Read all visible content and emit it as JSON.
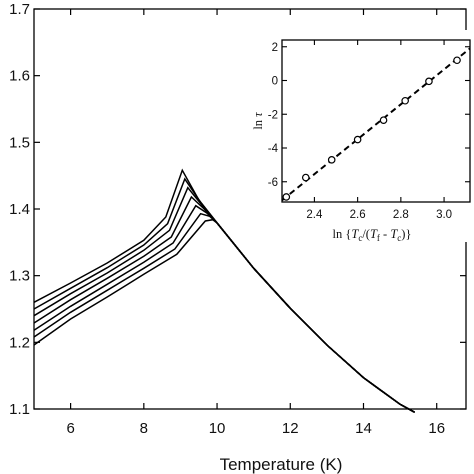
{
  "chart_data": [
    {
      "type": "line",
      "title": "",
      "xlabel": "Temperature (K)",
      "ylabel": "",
      "xlim": [
        5,
        16.8
      ],
      "ylim": [
        1.1,
        1.7
      ],
      "xticks": [
        6,
        8,
        10,
        12,
        14,
        16
      ],
      "yticks": [
        1.1,
        1.2,
        1.3,
        1.4,
        1.5,
        1.6,
        1.7
      ],
      "grid": false,
      "series": [
        {
          "x": [
            5.0,
            6.0,
            7.0,
            8.0,
            8.6,
            9.05,
            9.5,
            10.0,
            11.0,
            12.0,
            13.0,
            14.0,
            15.0,
            15.4
          ],
          "y": [
            1.26,
            1.289,
            1.319,
            1.353,
            1.388,
            1.458,
            1.414,
            1.379,
            1.311,
            1.251,
            1.196,
            1.147,
            1.107,
            1.095
          ]
        },
        {
          "x": [
            5.0,
            6.0,
            7.0,
            8.0,
            8.65,
            9.12,
            9.55,
            10.0,
            11.0,
            12.0,
            13.0,
            14.0,
            15.0,
            15.4
          ],
          "y": [
            1.25,
            1.281,
            1.312,
            1.346,
            1.378,
            1.445,
            1.41,
            1.379,
            1.311,
            1.251,
            1.196,
            1.147,
            1.107,
            1.095
          ]
        },
        {
          "x": [
            5.0,
            6.0,
            7.0,
            8.0,
            8.7,
            9.2,
            9.6,
            10.0,
            11.0,
            12.0,
            13.0,
            14.0,
            15.0,
            15.4
          ],
          "y": [
            1.24,
            1.273,
            1.304,
            1.338,
            1.368,
            1.432,
            1.405,
            1.379,
            1.311,
            1.251,
            1.196,
            1.147,
            1.107,
            1.095
          ]
        },
        {
          "x": [
            5.0,
            6.0,
            7.0,
            8.0,
            8.75,
            9.3,
            9.65,
            10.0,
            11.0,
            12.0,
            13.0,
            14.0,
            15.0,
            15.4
          ],
          "y": [
            1.229,
            1.264,
            1.296,
            1.329,
            1.358,
            1.418,
            1.4,
            1.379,
            1.311,
            1.251,
            1.196,
            1.147,
            1.107,
            1.095
          ]
        },
        {
          "x": [
            5.0,
            6.0,
            7.0,
            8.0,
            8.8,
            9.42,
            9.72,
            10.0,
            11.0,
            12.0,
            13.0,
            14.0,
            15.0,
            15.4
          ],
          "y": [
            1.218,
            1.254,
            1.287,
            1.32,
            1.349,
            1.405,
            1.394,
            1.379,
            1.311,
            1.251,
            1.196,
            1.147,
            1.107,
            1.095
          ]
        },
        {
          "x": [
            5.0,
            6.0,
            7.0,
            8.0,
            8.85,
            9.55,
            9.8,
            10.0,
            11.0,
            12.0,
            13.0,
            14.0,
            15.0,
            15.4
          ],
          "y": [
            1.208,
            1.245,
            1.278,
            1.311,
            1.34,
            1.393,
            1.389,
            1.379,
            1.311,
            1.251,
            1.196,
            1.147,
            1.107,
            1.095
          ]
        },
        {
          "x": [
            5.0,
            6.0,
            7.0,
            8.0,
            8.9,
            9.68,
            9.88,
            10.0,
            11.0,
            12.0,
            13.0,
            14.0,
            15.0,
            15.4
          ],
          "y": [
            1.196,
            1.235,
            1.268,
            1.302,
            1.332,
            1.382,
            1.384,
            1.379,
            1.311,
            1.251,
            1.196,
            1.147,
            1.107,
            1.095
          ]
        }
      ]
    },
    {
      "type": "scatter",
      "title": "",
      "xlabel_parts": [
        "ln {",
        "T",
        "c",
        "/(",
        "T",
        "f",
        " - ",
        "T",
        "c",
        ")}"
      ],
      "ylabel_parts": [
        "ln ",
        "τ"
      ],
      "xlim": [
        2.25,
        3.12
      ],
      "ylim": [
        -7.2,
        2.4
      ],
      "xticks": [
        2.4,
        2.6,
        2.8,
        3.0
      ],
      "xtick_labels": [
        "2.4",
        "2.6",
        "2.8",
        "3.0"
      ],
      "yticks": [
        2,
        0,
        -2,
        -4,
        -6
      ],
      "ytick_labels": [
        "2",
        "0",
        "-2",
        "-4",
        "-6"
      ],
      "grid": false,
      "points": {
        "x": [
          2.27,
          2.36,
          2.48,
          2.6,
          2.72,
          2.82,
          2.93,
          3.06
        ],
        "y": [
          -6.9,
          -5.75,
          -4.7,
          -3.5,
          -2.35,
          -1.2,
          -0.05,
          1.2
        ]
      },
      "fit": {
        "style": "dashed",
        "x": [
          2.25,
          3.12
        ],
        "y": [
          -7.1,
          1.9
        ]
      }
    }
  ]
}
